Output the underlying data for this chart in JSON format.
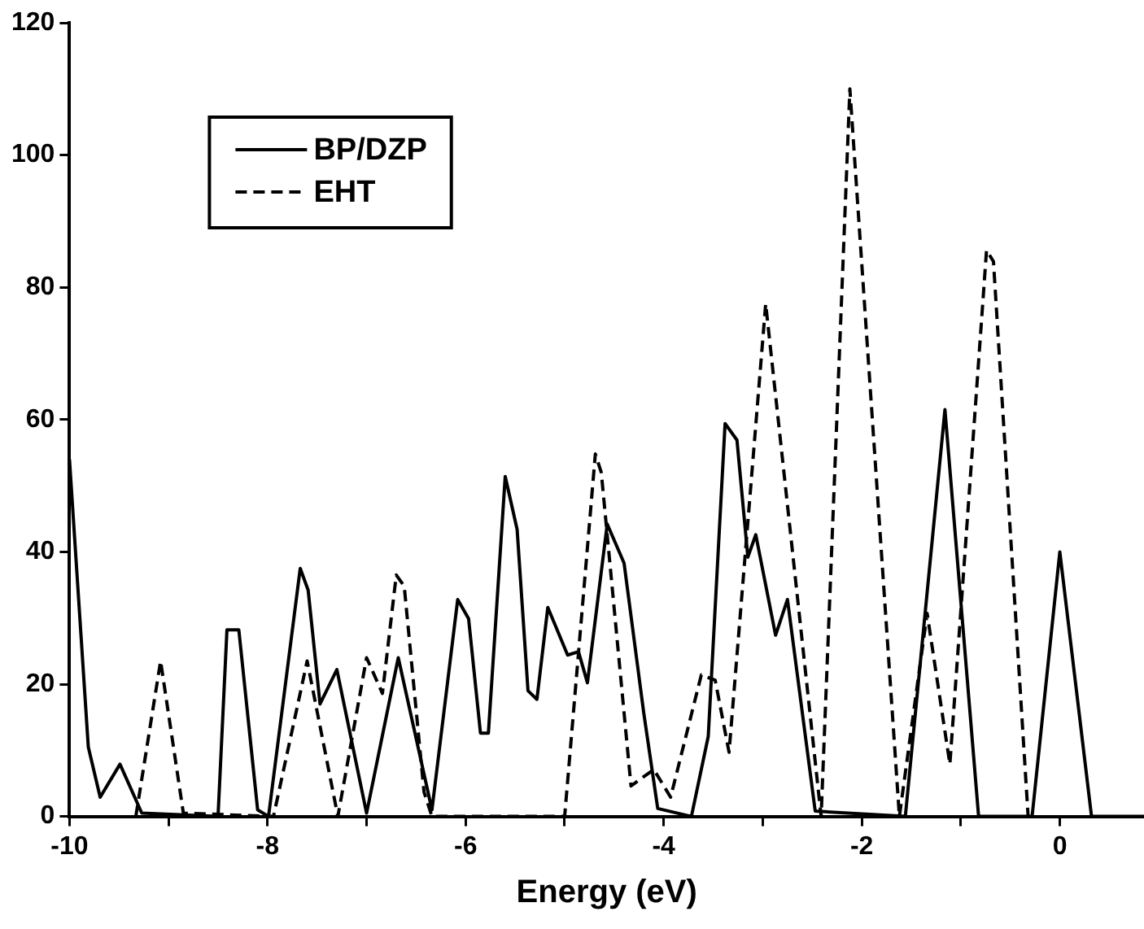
{
  "chart_data": {
    "type": "line",
    "xlabel": "Energy (eV)",
    "xlim": [
      -10,
      0.85
    ],
    "ylim": [
      0,
      120
    ],
    "xticks": [
      -10,
      {
        "value": -9,
        "label": null
      },
      -8,
      {
        "value": -7,
        "label": null
      },
      -6,
      {
        "value": -5,
        "label": null
      },
      -4,
      {
        "value": -3,
        "label": null
      },
      -2,
      {
        "value": -1,
        "label": null
      },
      0
    ],
    "yticks": [
      0,
      20,
      40,
      60,
      80,
      100,
      120
    ],
    "grid": false,
    "legend": "top left",
    "marker": "none",
    "series": [
      {
        "name": "BP/DZP",
        "color": "#000000",
        "line_style": "solid",
        "x": [
          -10,
          -9.81,
          -9.69,
          -9.49,
          -9.27,
          -8.5,
          -8.41,
          -8.29,
          -8.1,
          -7.99,
          -7.67,
          -7.59,
          -7.47,
          -7.3,
          -7.0,
          -6.68,
          -6.34,
          -6.08,
          -5.97,
          -5.85,
          -5.77,
          -5.6,
          -5.48,
          -5.37,
          -5.28,
          -5.17,
          -4.97,
          -4.86,
          -4.77,
          -4.57,
          -4.4,
          -4.2,
          -4.06,
          -3.72,
          -3.55,
          -3.38,
          -3.26,
          -3.15,
          -3.07,
          -2.87,
          -2.75,
          -2.47,
          -1.56,
          -1.16,
          -0.82,
          -0.28,
          0,
          0.32,
          0.85
        ],
        "values": [
          54,
          10.5,
          2.9,
          7.9,
          0.5,
          0,
          28.2,
          28.2,
          1,
          0,
          37.5,
          34.2,
          17,
          22.2,
          0.5,
          24,
          1,
          32.8,
          29.9,
          12.6,
          12.6,
          51.4,
          43.4,
          19,
          17.7,
          31.6,
          24.4,
          24.9,
          20.2,
          44.2,
          38.3,
          15.5,
          1.2,
          0,
          12.1,
          59.4,
          56.9,
          39.2,
          42.6,
          27.4,
          32.8,
          0.8,
          0,
          61.5,
          0,
          0,
          40,
          0,
          0
        ]
      },
      {
        "name": "EHT",
        "color": "#000000",
        "line_style": "dashed",
        "x": [
          -9.33,
          -9.08,
          -8.85,
          -7.94,
          -7.6,
          -7.29,
          -7.0,
          -6.84,
          -6.7,
          -6.62,
          -6.42,
          -6.34,
          -5.0,
          -4.69,
          -4.63,
          -4.33,
          -4.1,
          -3.93,
          -3.62,
          -3.48,
          -3.34,
          -2.97,
          -2.41,
          -2.12,
          -1.62,
          -1.34,
          -1.11,
          -0.74,
          -0.67,
          -0.32
        ],
        "values": [
          0,
          23.5,
          0.5,
          0,
          23.5,
          0,
          24,
          18.6,
          36.5,
          34.8,
          3.7,
          0,
          0,
          54.8,
          52,
          4.6,
          7.1,
          2.9,
          21.4,
          20.6,
          9.7,
          77.5,
          0,
          110,
          0,
          30.7,
          7.9,
          85.6,
          83.9,
          0
        ]
      }
    ]
  }
}
